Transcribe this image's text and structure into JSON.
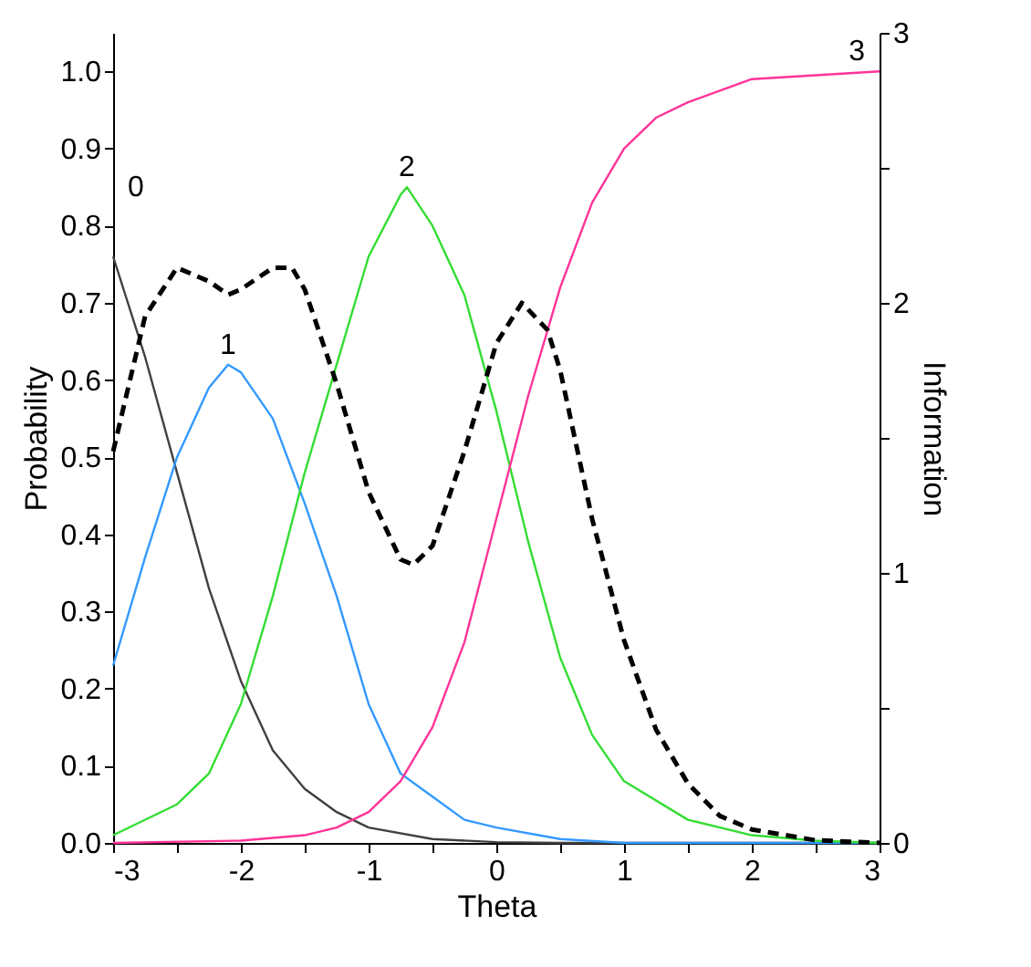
{
  "chart_data": {
    "type": "line",
    "xlabel": "Theta",
    "ylabel": "Probability",
    "y2label": "Information",
    "xlim": [
      -3,
      3
    ],
    "xticks": [
      -3,
      {
        "value": -2.5,
        "label": null
      },
      -2,
      {
        "value": -1.5,
        "label": null
      },
      -1,
      {
        "value": -0.5,
        "label": null
      },
      0,
      {
        "value": 0.5,
        "label": null
      },
      1,
      {
        "value": 1.5,
        "label": null
      },
      2,
      {
        "value": 2.5,
        "label": null
      },
      3
    ],
    "ylim": [
      0,
      1.05
    ],
    "yticks": [
      {
        "value": 0,
        "label": "0.0"
      },
      0.1,
      0.2,
      0.3,
      0.4,
      0.5,
      0.6,
      0.7,
      0.8,
      0.9,
      {
        "value": 1,
        "label": "1.0"
      }
    ],
    "y2lim": [
      0,
      3
    ],
    "y2ticks": [
      0,
      {
        "value": 0.5,
        "label": null
      },
      1,
      {
        "value": 1.5,
        "label": null
      },
      2,
      {
        "value": 2.5,
        "label": null
      },
      3
    ],
    "grid": false,
    "legend": false,
    "marker": "none",
    "series": [
      {
        "name": "0",
        "color": "#404040",
        "line_style": "solid",
        "x": [
          -3,
          -2.75,
          -2.5,
          -2.25,
          -2,
          -1.75,
          -1.5,
          -1.25,
          -1,
          -0.5,
          0,
          0.5,
          1,
          2,
          3
        ],
        "values": [
          0.76,
          0.63,
          0.48,
          0.33,
          0.21,
          0.12,
          0.07,
          0.04,
          0.02,
          0.005,
          0.001,
          0,
          0,
          0,
          0
        ]
      },
      {
        "name": "1",
        "color": "#3399ff",
        "line_style": "solid",
        "x": [
          -3,
          -2.75,
          -2.5,
          -2.25,
          -2.1,
          -2,
          -1.75,
          -1.5,
          -1.25,
          -1,
          -0.75,
          -0.5,
          -0.25,
          0,
          0.5,
          1,
          2,
          3
        ],
        "values": [
          0.23,
          0.37,
          0.5,
          0.59,
          0.62,
          0.61,
          0.55,
          0.44,
          0.32,
          0.18,
          0.09,
          0.06,
          0.03,
          0.02,
          0.005,
          0,
          0,
          0
        ]
      },
      {
        "name": "2",
        "color": "#33dd33",
        "line_style": "solid",
        "x": [
          -3,
          -2.5,
          -2.25,
          -2,
          -1.75,
          -1.5,
          -1.25,
          -1,
          -0.75,
          -0.7,
          -0.5,
          -0.25,
          0,
          0.25,
          0.5,
          0.75,
          1,
          1.5,
          2,
          2.5,
          3
        ],
        "values": [
          0.01,
          0.05,
          0.09,
          0.18,
          0.32,
          0.48,
          0.62,
          0.76,
          0.84,
          0.85,
          0.8,
          0.71,
          0.56,
          0.39,
          0.24,
          0.14,
          0.08,
          0.03,
          0.01,
          0.003,
          0
        ]
      },
      {
        "name": "3",
        "color": "#ff3399",
        "line_style": "solid",
        "x": [
          -3,
          -2,
          -1.5,
          -1.25,
          -1,
          -0.75,
          -0.5,
          -0.25,
          0,
          0.25,
          0.5,
          0.75,
          1,
          1.25,
          1.5,
          2,
          2.5,
          3
        ],
        "values": [
          0,
          0.003,
          0.01,
          0.02,
          0.04,
          0.08,
          0.15,
          0.26,
          0.42,
          0.58,
          0.72,
          0.83,
          0.9,
          0.94,
          0.96,
          0.99,
          0.995,
          1.0
        ]
      },
      {
        "color": "#000000",
        "line_style": "dashed",
        "axis": "y2",
        "x": [
          -3,
          -2.75,
          -2.5,
          -2.25,
          -2.1,
          -2,
          -1.75,
          -1.6,
          -1.5,
          -1.25,
          -1,
          -0.75,
          -0.65,
          -0.5,
          -0.25,
          0,
          0.2,
          0.4,
          0.5,
          0.75,
          1,
          1.25,
          1.5,
          1.75,
          2,
          2.5,
          3
        ],
        "values": [
          1.45,
          1.95,
          2.13,
          2.08,
          2.03,
          2.05,
          2.13,
          2.13,
          2.05,
          1.7,
          1.3,
          1.05,
          1.03,
          1.1,
          1.45,
          1.85,
          2.0,
          1.9,
          1.75,
          1.2,
          0.75,
          0.42,
          0.22,
          0.1,
          0.05,
          0.01,
          0
        ]
      }
    ]
  }
}
